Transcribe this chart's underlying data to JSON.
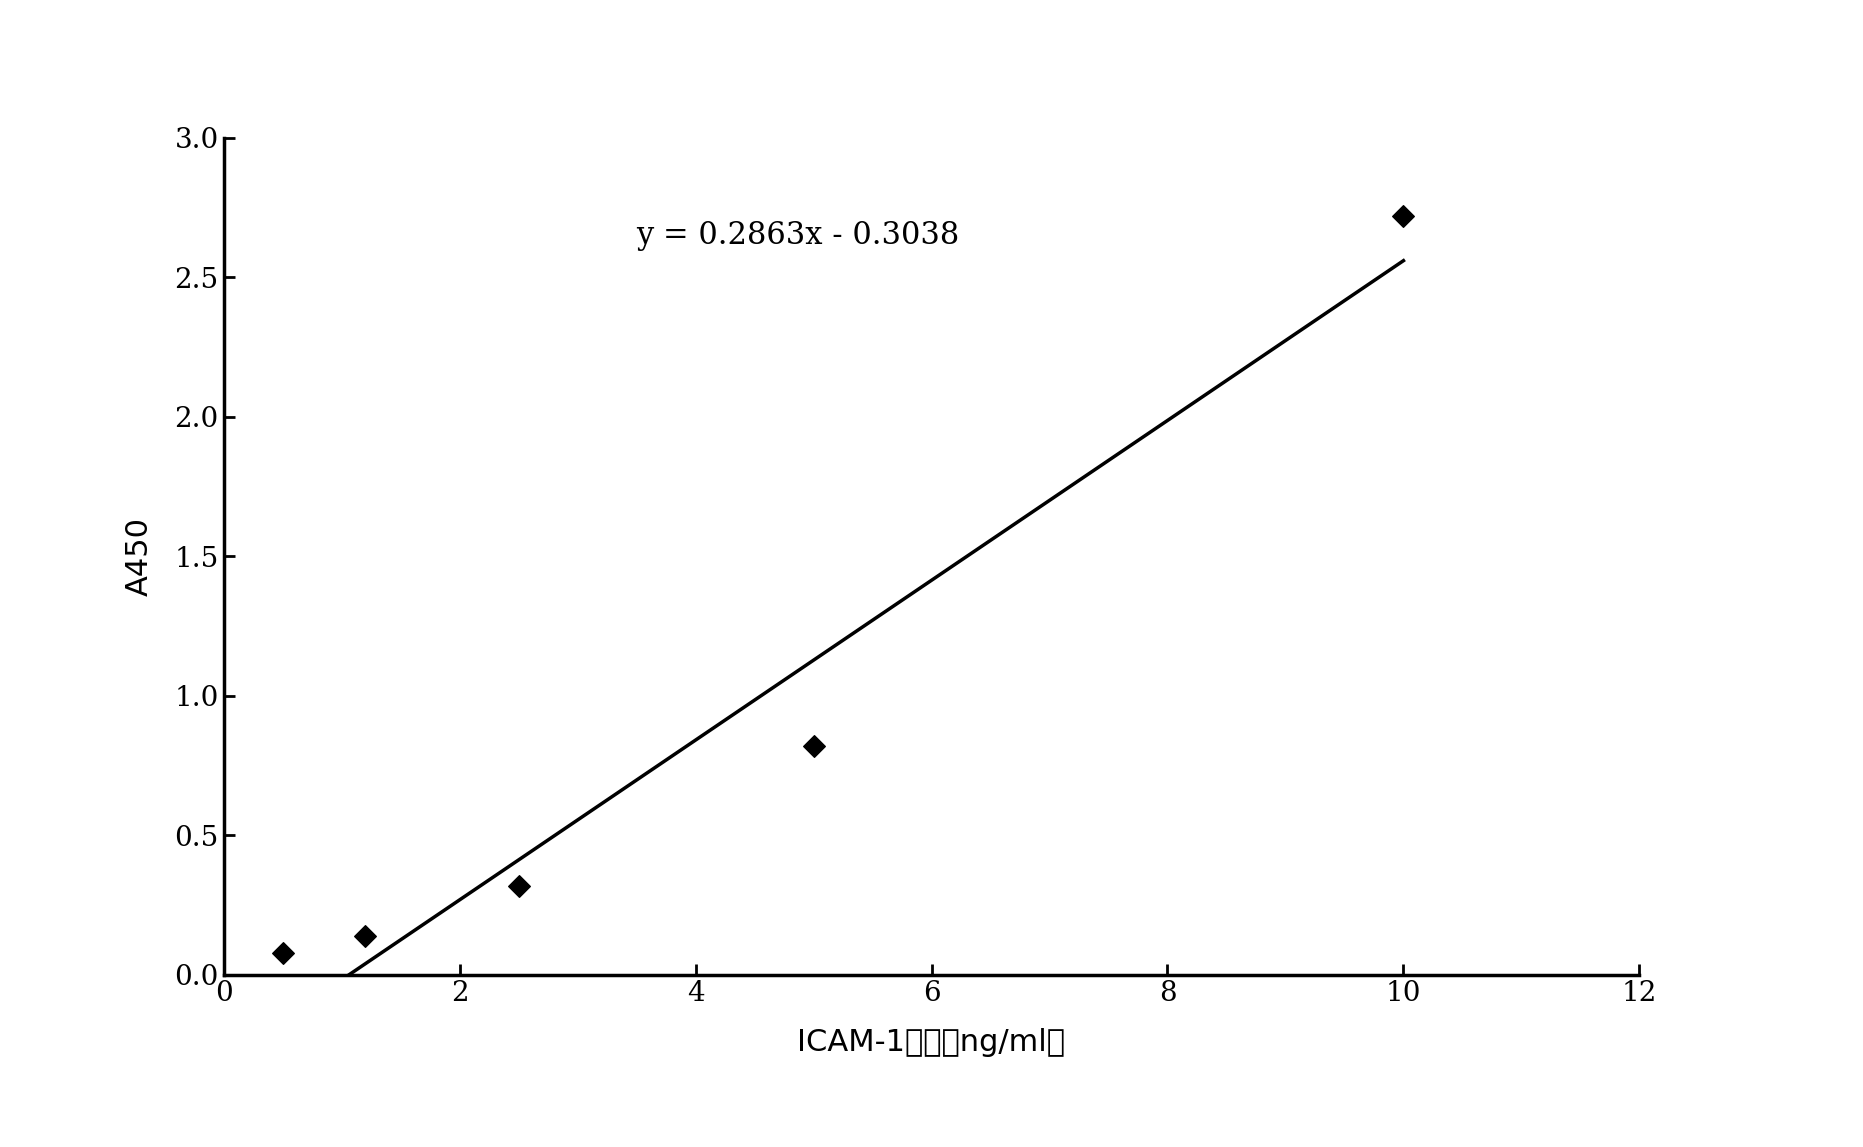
{
  "scatter_x": [
    0.5,
    1.2,
    2.5,
    5.0,
    10.0
  ],
  "scatter_y": [
    0.08,
    0.14,
    0.32,
    0.82,
    2.72
  ],
  "slope": 0.2863,
  "intercept": -0.3038,
  "line_x_start": 1.06,
  "line_x_end": 10.0,
  "equation_text": "y = 0.2863x - 0.3038",
  "equation_x": 3.5,
  "equation_y": 2.62,
  "xlabel": "ICAM-1浓度（ng/ml）",
  "ylabel": "A450",
  "xlim": [
    0,
    12
  ],
  "ylim": [
    0,
    3
  ],
  "xticks": [
    0,
    2,
    4,
    6,
    8,
    10,
    12
  ],
  "yticks": [
    0,
    0.5,
    1,
    1.5,
    2,
    2.5,
    3
  ],
  "marker_color": "#000000",
  "line_color": "#000000",
  "marker_size": 11,
  "line_width": 2.5,
  "background_color": "#ffffff",
  "axes_background": "#ffffff",
  "xlabel_fontsize": 22,
  "ylabel_fontsize": 22,
  "tick_fontsize": 20,
  "equation_fontsize": 22,
  "spine_linewidth": 2.5
}
